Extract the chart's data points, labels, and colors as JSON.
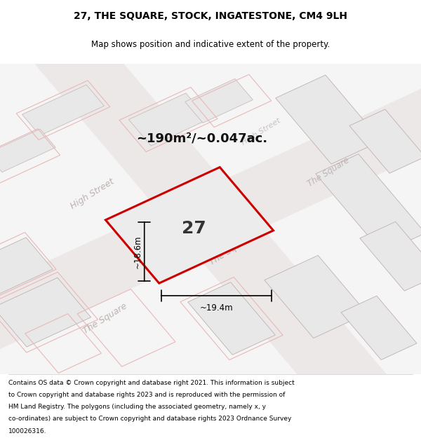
{
  "title": "27, THE SQUARE, STOCK, INGATESTONE, CM4 9LH",
  "subtitle": "Map shows position and indicative extent of the property.",
  "area_label": "~190m²/~0.047ac.",
  "width_label": "~19.4m",
  "height_label": "~18.6m",
  "number_label": "27",
  "footer": "Contains OS data © Crown copyright and database right 2021. This information is subject to Crown copyright and database rights 2023 and is reproduced with the permission of HM Land Registry. The polygons (including the associated geometry, namely x, y co-ordinates) are subject to Crown copyright and database rights 2023 Ordnance Survey 100026316.",
  "bg_color": "#f5f5f5",
  "map_bg": "#f0f0f0",
  "plot_fill": "#e8e8e8",
  "plot_stroke": "#cc0000",
  "street_color": "#d9b8b8",
  "street_label_color": "#aaaaaa",
  "building_fill": "#e0e0e0",
  "building_stroke": "#c0b0b0",
  "dim_color": "#000000",
  "title_color": "#000000",
  "footer_color": "#000000"
}
